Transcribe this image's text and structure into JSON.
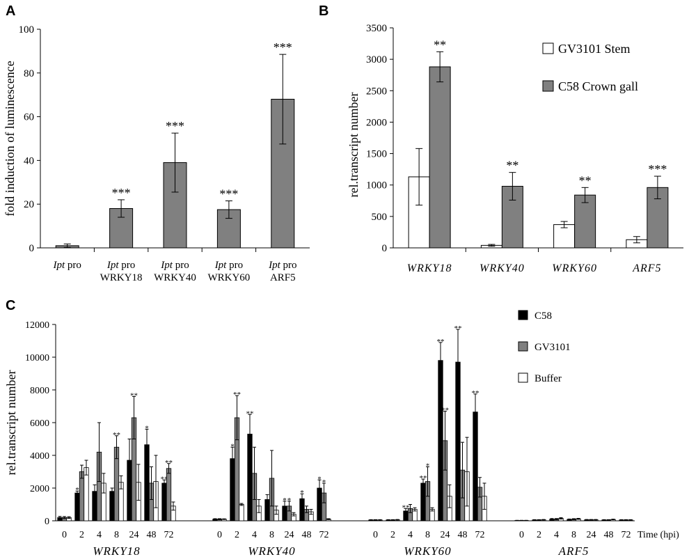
{
  "panels": {
    "a": {
      "letter": "A"
    },
    "b": {
      "letter": "B"
    },
    "c": {
      "letter": "C"
    }
  },
  "chart_data": [
    {
      "type": "bar",
      "panel": "A",
      "ylabel": "fold induction of luminescence",
      "ylim": [
        0,
        100
      ],
      "yticks": [
        0,
        20,
        40,
        60,
        80,
        100
      ],
      "categories": [
        {
          "line1_italic": "Ipt",
          "line1_rest": " pro",
          "line2": ""
        },
        {
          "line1_italic": "Ipt",
          "line1_rest": " pro",
          "line2": "WRKY18"
        },
        {
          "line1_italic": "Ipt",
          "line1_rest": " pro",
          "line2": "WRKY40"
        },
        {
          "line1_italic": "Ipt",
          "line1_rest": " pro",
          "line2": "WRKY60"
        },
        {
          "line1_italic": "Ipt",
          "line1_rest": " pro",
          "line2": "ARF5"
        }
      ],
      "values": [
        1,
        18,
        39,
        17.5,
        68
      ],
      "errors": [
        0.8,
        4,
        13.5,
        4,
        20.5
      ],
      "significance": [
        "",
        "***",
        "***",
        "***",
        "***"
      ],
      "color": "#808080"
    },
    {
      "type": "bar",
      "panel": "B",
      "ylabel": "rel.transcript number",
      "ylim": [
        0,
        3500
      ],
      "yticks": [
        0,
        500,
        1000,
        1500,
        2000,
        2500,
        3000,
        3500
      ],
      "categories": [
        "WRKY18",
        "WRKY40",
        "WRKY60",
        "ARF5"
      ],
      "series": [
        {
          "name": "GV3101 Stem",
          "color": "#ffffff",
          "values": [
            1130,
            40,
            370,
            130
          ],
          "errors": [
            450,
            15,
            50,
            50
          ],
          "significance": [
            "",
            "",
            "",
            ""
          ]
        },
        {
          "name": "C58 Crown gall",
          "color": "#808080",
          "values": [
            2880,
            980,
            840,
            960
          ],
          "errors": [
            240,
            220,
            120,
            180
          ],
          "significance": [
            "**",
            "**",
            "**",
            "***"
          ]
        }
      ],
      "legend": "top-right"
    },
    {
      "type": "bar",
      "panel": "C",
      "ylabel": "rel.transcript number",
      "xlabel": "Time (hpi)",
      "ylim": [
        0,
        12000
      ],
      "yticks": [
        0,
        2000,
        4000,
        6000,
        8000,
        10000,
        12000
      ],
      "timepoints": [
        "0",
        "2",
        "4",
        "8",
        "24",
        "48",
        "72"
      ],
      "genes": [
        "WRKY18",
        "WRKY40",
        "WRKY60",
        "ARF5"
      ],
      "legend": "top-right",
      "series": [
        {
          "name": "C58",
          "color": "#000000",
          "values": [
            [
              200,
              1700,
              1800,
              1800,
              3700,
              4650,
              2300
            ],
            [
              100,
              3800,
              5300,
              1300,
              900,
              1350,
              2000
            ],
            [
              50,
              50,
              600,
              2300,
              9800,
              9700,
              6650
            ],
            [
              20,
              50,
              100,
              80,
              60,
              50,
              50
            ]
          ],
          "errors": [
            [
              70,
              120,
              400,
              200,
              1300,
              950,
              200
            ],
            [
              30,
              700,
              1200,
              300,
              300,
              300,
              500
            ],
            [
              20,
              20,
              150,
              250,
              1100,
              2000,
              1100
            ],
            [
              10,
              20,
              40,
              30,
              20,
              20,
              20
            ]
          ],
          "significance": [
            [
              "",
              "*",
              "",
              "",
              "",
              "*",
              "**"
            ],
            [
              "",
              "*",
              "**",
              "",
              "*",
              "*",
              "*"
            ],
            [
              "",
              "",
              "**",
              "**",
              "**",
              "**",
              "**"
            ],
            [
              "",
              "",
              "",
              "",
              "",
              "",
              ""
            ]
          ]
        },
        {
          "name": "GV3101",
          "color": "#808080",
          "values": [
            [
              200,
              3000,
              4200,
              4500,
              6300,
              2300,
              3200
            ],
            [
              100,
              6300,
              2900,
              2600,
              900,
              700,
              1700
            ],
            [
              50,
              50,
              750,
              2400,
              4900,
              3100,
              2050
            ],
            [
              20,
              50,
              100,
              100,
              60,
              50,
              50
            ]
          ],
          "errors": [
            [
              60,
              400,
              1800,
              700,
              1300,
              1000,
              300
            ],
            [
              30,
              1350,
              1600,
              1700,
              300,
              200,
              600
            ],
            [
              20,
              20,
              250,
              900,
              1800,
              1700,
              600
            ],
            [
              10,
              20,
              40,
              30,
              20,
              20,
              20
            ]
          ],
          "significance": [
            [
              "",
              "",
              "",
              "**",
              "**",
              "",
              "**"
            ],
            [
              "",
              "**",
              "",
              "",
              "*",
              "",
              "*"
            ],
            [
              "",
              "",
              "",
              "*",
              "**",
              "",
              ""
            ],
            [
              "",
              "",
              "",
              "",
              "",
              "",
              ""
            ]
          ]
        },
        {
          "name": "Buffer",
          "color": "#ffffff",
          "values": [
            [
              200,
              3250,
              2300,
              2350,
              2350,
              2400,
              900
            ],
            [
              100,
              1000,
              900,
              650,
              400,
              550,
              100
            ],
            [
              50,
              60,
              700,
              700,
              1500,
              3000,
              1500
            ],
            [
              20,
              60,
              150,
              120,
              60,
              80,
              50
            ]
          ],
          "errors": [
            [
              50,
              450,
              600,
              400,
              1100,
              1600,
              250
            ],
            [
              20,
              60,
              400,
              250,
              100,
              150,
              30
            ],
            [
              20,
              20,
              100,
              100,
              700,
              2100,
              800
            ],
            [
              10,
              20,
              40,
              30,
              20,
              20,
              20
            ]
          ],
          "significance": [
            [
              "",
              "",
              "",
              "",
              "",
              "",
              ""
            ],
            [
              "",
              "",
              "",
              "",
              "",
              "",
              ""
            ],
            [
              "",
              "",
              "",
              "",
              "",
              "",
              ""
            ],
            [
              "",
              "",
              "",
              "",
              "",
              "",
              ""
            ]
          ]
        }
      ]
    }
  ]
}
